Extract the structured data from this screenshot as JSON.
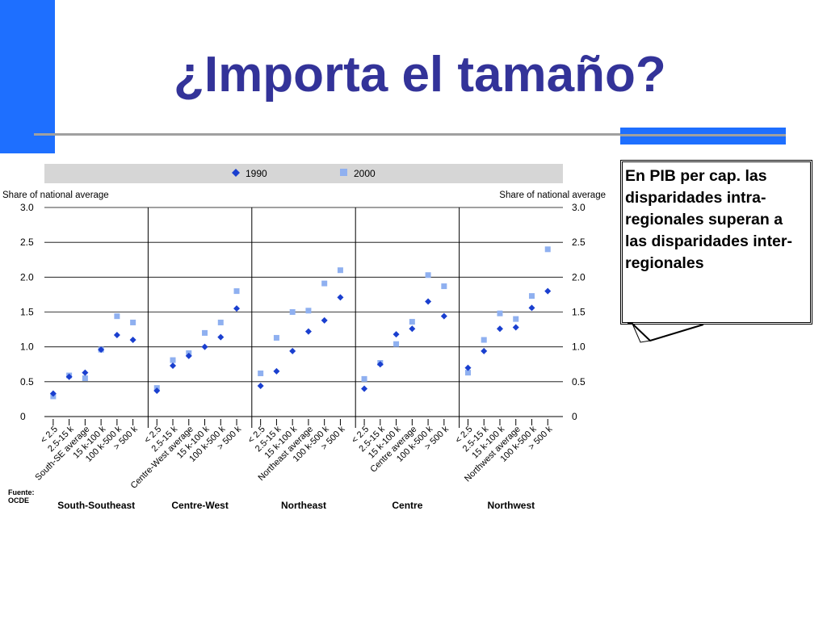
{
  "slide": {
    "title": "¿Importa el tamaño?",
    "callout": "En PIB per cap. las\ndisparidades intra-\nregionales superan a\nlas disparidades inter-\nregionales"
  },
  "colors": {
    "title": "#333399",
    "accent_bar": "#1e6fff",
    "series_1990": "#1a3fcf",
    "series_2000": "#8fb0f0",
    "legend_band": "#d6d6d6"
  },
  "chart_data": {
    "type": "scatter",
    "ylabel_left": "Share of national average",
    "ylabel_right": "Share of national average",
    "yticks": [
      "0",
      "0.5",
      "1.0",
      "1.5",
      "2.0",
      "2.5",
      "3.0"
    ],
    "ylim": [
      0,
      3.0
    ],
    "legend_position": "top",
    "grid": true,
    "source_label": "Fuente: OCDE",
    "series": [
      {
        "name": "1990",
        "marker": "diamond",
        "color": "#1a3fcf"
      },
      {
        "name": "2000",
        "marker": "square",
        "color": "#8fb0f0"
      }
    ],
    "groups": [
      {
        "name": "South-Southeast",
        "categories": [
          "< 2.5",
          "2.5-15 k",
          "South-SE average",
          "15 k-100 k",
          "100 k-500 k",
          "> 500 k"
        ],
        "v1990": [
          0.33,
          0.57,
          0.63,
          0.96,
          1.17,
          1.1
        ],
        "v2000": [
          0.29,
          0.59,
          0.55,
          0.96,
          1.44,
          1.35
        ]
      },
      {
        "name": "Centre-West",
        "categories": [
          "< 2.5",
          "2.5-15 k",
          "Centre-West average",
          "15 k-100 k",
          "100 k-500 k",
          "> 500 k"
        ],
        "v1990": [
          0.37,
          0.73,
          0.87,
          1.0,
          1.14,
          1.55
        ],
        "v2000": [
          0.41,
          0.81,
          0.91,
          1.2,
          1.35,
          1.8
        ]
      },
      {
        "name": "Northeast",
        "categories": [
          "< 2.5",
          "2.5-15 k",
          "15 k-100 k",
          "Northeast average",
          "100 k-500 k",
          "> 500 k"
        ],
        "v1990": [
          0.44,
          0.65,
          0.94,
          1.22,
          1.38,
          1.71
        ],
        "v2000": [
          0.62,
          1.13,
          1.5,
          1.52,
          1.91,
          2.1
        ]
      },
      {
        "name": "Centre",
        "categories": [
          "< 2.5",
          "2.5-15 k",
          "15 k-100 k",
          "Centre average",
          "100 k-500 k",
          "> 500 k"
        ],
        "v1990": [
          0.4,
          0.75,
          1.18,
          1.26,
          1.65,
          1.44
        ],
        "v2000": [
          0.54,
          0.77,
          1.04,
          1.36,
          2.03,
          1.87
        ]
      },
      {
        "name": "Northwest",
        "categories": [
          "< 2.5",
          "2.5-15 k",
          "15 k-100 k",
          "Northwest average",
          "100 k-500 k",
          "> 500 k"
        ],
        "v1990": [
          0.7,
          0.94,
          1.26,
          1.28,
          1.56,
          1.8
        ],
        "v2000": [
          0.63,
          1.1,
          1.48,
          1.4,
          1.73,
          2.4
        ]
      }
    ]
  }
}
